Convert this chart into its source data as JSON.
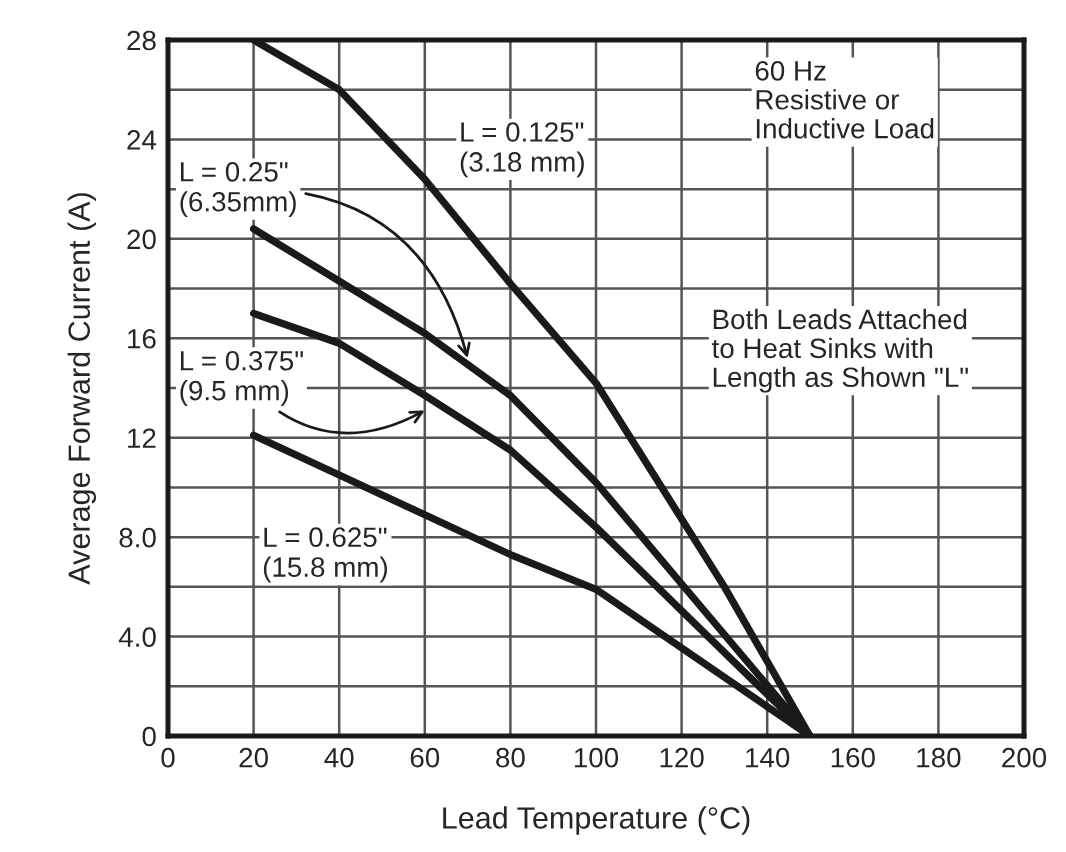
{
  "chart_data": {
    "type": "line",
    "xlabel": "Lead Temperature (°C)",
    "ylabel": "Average Forward Current (A)",
    "xlim": [
      0,
      200
    ],
    "xticks": [
      0,
      20,
      40,
      60,
      80,
      100,
      120,
      140,
      160,
      180,
      200
    ],
    "ylim": [
      0,
      28
    ],
    "yticks": [
      0,
      {
        "value": 2,
        "label": null
      },
      {
        "value": 4,
        "label": "4.0"
      },
      {
        "value": 6,
        "label": null
      },
      {
        "value": 8,
        "label": "8.0"
      },
      {
        "value": 10,
        "label": null
      },
      12,
      {
        "value": 14,
        "label": null
      },
      16,
      {
        "value": 18,
        "label": null
      },
      20,
      {
        "value": 22,
        "label": null
      },
      24,
      {
        "value": 26,
        "label": null
      },
      28
    ],
    "grid": true,
    "marker": "none",
    "line_style": "solid",
    "series": [
      {
        "name": "L = 0.125\"\n(3.18 mm)",
        "color": "#1a1a1a",
        "x": [
          20,
          40,
          60,
          80,
          100,
          130,
          150
        ],
        "values": [
          28,
          26,
          22.4,
          18.2,
          14.2,
          6,
          0
        ]
      },
      {
        "name": "L = 0.25\"\n(6.35mm)",
        "color": "#1a1a1a",
        "x": [
          20,
          40,
          60,
          80,
          100,
          150
        ],
        "values": [
          20.4,
          18.3,
          16.2,
          13.7,
          10.2,
          0
        ]
      },
      {
        "name": "L = 0.375\"\n(9.5 mm)",
        "color": "#1a1a1a",
        "x": [
          20,
          40,
          60,
          80,
          100,
          150
        ],
        "values": [
          17.0,
          15.8,
          13.7,
          11.5,
          8.4,
          0
        ]
      },
      {
        "name": "L = 0.625\"\n(15.8 mm)",
        "color": "#1a1a1a",
        "x": [
          20,
          40,
          60,
          80,
          100,
          150
        ],
        "values": [
          12.1,
          10.5,
          8.9,
          7.3,
          5.9,
          0
        ]
      }
    ],
    "annotations": [
      "60 Hz\nResistive or\nInductive Load",
      "Both Leads Attached\nto Heat Sinks with\nLength as Shown \"L\""
    ]
  }
}
